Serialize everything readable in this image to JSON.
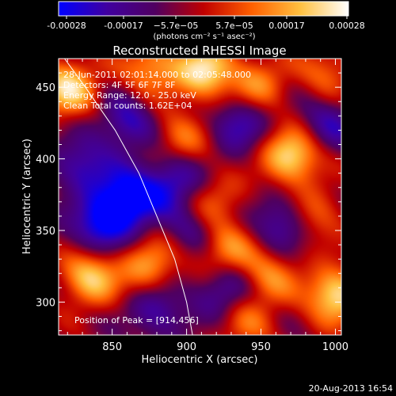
{
  "colorbar": {
    "ticks": [
      "-0.00028",
      "-0.00017",
      "−5.7e−05",
      "5.7e−05",
      "0.00017",
      "0.00028"
    ],
    "unit_label": "(photons cm⁻² s⁻¹ asec⁻²)",
    "colors": [
      "#0000ff",
      "#4000a0",
      "#500060",
      "#c00000",
      "#ff6000",
      "#ffc040",
      "#ffffff"
    ]
  },
  "chart_data": {
    "type": "heatmap",
    "title": "Reconstructed RHESSI Image",
    "xlabel": "Heliocentric X (arcsec)",
    "ylabel": "Heliocentric Y (arcsec)",
    "xlim": [
      814,
      1004
    ],
    "ylim": [
      277,
      470
    ],
    "xticks": [
      850,
      900,
      950,
      1000
    ],
    "yticks": [
      300,
      350,
      400,
      450
    ],
    "xtick_labels": [
      "850",
      "900",
      "950",
      "1000"
    ],
    "ytick_labels": [
      "300",
      "350",
      "400",
      "450"
    ],
    "value_range": [
      -0.00028,
      0.00028
    ],
    "blobs": [
      {
        "x": 912,
        "y": 461,
        "v": 1.0
      },
      {
        "x": 820,
        "y": 450,
        "v": 0.95
      },
      {
        "x": 876,
        "y": 464,
        "v": 0.7
      },
      {
        "x": 970,
        "y": 402,
        "v": 1.0
      },
      {
        "x": 895,
        "y": 414,
        "v": 0.55
      },
      {
        "x": 948,
        "y": 452,
        "v": 0.6
      },
      {
        "x": 995,
        "y": 462,
        "v": 0.5
      },
      {
        "x": 1000,
        "y": 305,
        "v": 1.0
      },
      {
        "x": 835,
        "y": 318,
        "v": 0.9
      },
      {
        "x": 875,
        "y": 325,
        "v": 0.7
      },
      {
        "x": 925,
        "y": 336,
        "v": 0.7
      },
      {
        "x": 955,
        "y": 318,
        "v": 0.6
      },
      {
        "x": 918,
        "y": 370,
        "v": 0.5
      },
      {
        "x": 985,
        "y": 360,
        "v": 0.55
      },
      {
        "x": 940,
        "y": 285,
        "v": 0.45
      },
      {
        "x": 860,
        "y": 372,
        "v": -1.0
      },
      {
        "x": 842,
        "y": 353,
        "v": -0.8
      },
      {
        "x": 890,
        "y": 385,
        "v": -0.7
      },
      {
        "x": 860,
        "y": 425,
        "v": -0.6
      },
      {
        "x": 935,
        "y": 425,
        "v": -0.6
      },
      {
        "x": 925,
        "y": 310,
        "v": -0.6
      },
      {
        "x": 965,
        "y": 355,
        "v": -0.65
      },
      {
        "x": 880,
        "y": 295,
        "v": -0.55
      },
      {
        "x": 905,
        "y": 352,
        "v": -0.45
      },
      {
        "x": 995,
        "y": 425,
        "v": -0.5
      },
      {
        "x": 830,
        "y": 395,
        "v": -0.6
      }
    ],
    "limb_curve": [
      [
        818,
        470
      ],
      [
        832,
        450
      ],
      [
        852,
        420
      ],
      [
        868,
        390
      ],
      [
        880,
        360
      ],
      [
        892,
        330
      ],
      [
        900,
        300
      ],
      [
        904,
        277
      ]
    ],
    "peak": [
      914,
      456
    ]
  },
  "annotations": {
    "time_range": "28-Jun-2011 02:01:14.000 to 02:05:48.000",
    "detectors": "Detectors: 4F 5F 6F 7F 8F",
    "energy_range": "Energy Range: 12.0 - 25.0 keV",
    "clean": "Clean    Total counts: 1.62E+04",
    "peak_label": "Position of Peak = [914,456]"
  },
  "footer": {
    "date": "20-Aug-2013 16:54"
  }
}
